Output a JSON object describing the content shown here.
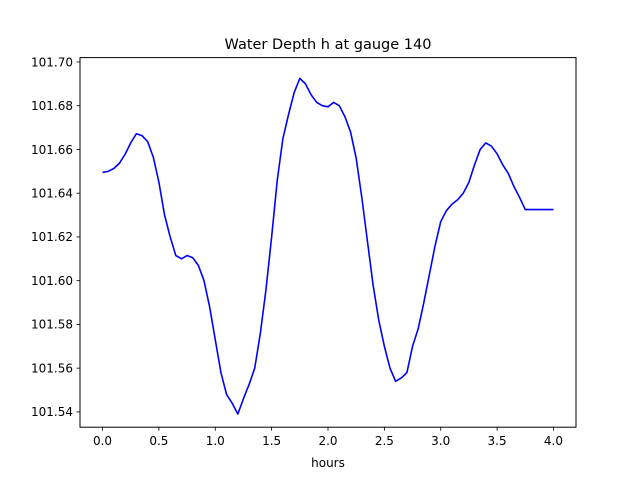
{
  "chart_data": {
    "type": "line",
    "title": "Water Depth h at gauge 140",
    "xlabel": "hours",
    "ylabel": "",
    "xlim": [
      -0.2,
      4.2
    ],
    "ylim": [
      101.533,
      101.702
    ],
    "x_ticks": [
      0.0,
      0.5,
      1.0,
      1.5,
      2.0,
      2.5,
      3.0,
      3.5,
      4.0
    ],
    "x_tick_labels": [
      "0.0",
      "0.5",
      "1.0",
      "1.5",
      "2.0",
      "2.5",
      "3.0",
      "3.5",
      "4.0"
    ],
    "y_ticks": [
      101.54,
      101.56,
      101.58,
      101.6,
      101.62,
      101.64,
      101.66,
      101.68,
      101.7
    ],
    "y_tick_labels": [
      "101.54",
      "101.56",
      "101.58",
      "101.60",
      "101.62",
      "101.64",
      "101.66",
      "101.68",
      "101.70"
    ],
    "grid": false,
    "legend": "none",
    "series": [
      {
        "color": "#0000ff",
        "x": [
          0.0,
          0.05,
          0.1,
          0.15,
          0.2,
          0.25,
          0.3,
          0.35,
          0.4,
          0.45,
          0.5,
          0.55,
          0.6,
          0.65,
          0.7,
          0.75,
          0.8,
          0.85,
          0.9,
          0.95,
          1.0,
          1.05,
          1.1,
          1.15,
          1.2,
          1.25,
          1.28,
          1.3,
          1.35,
          1.4,
          1.45,
          1.5,
          1.55,
          1.6,
          1.65,
          1.7,
          1.75,
          1.8,
          1.85,
          1.9,
          1.95,
          2.0,
          2.05,
          2.1,
          2.15,
          2.2,
          2.25,
          2.3,
          2.35,
          2.4,
          2.45,
          2.5,
          2.55,
          2.6,
          2.65,
          2.7,
          2.75,
          2.8,
          2.85,
          2.9,
          2.95,
          3.0,
          3.05,
          3.1,
          3.15,
          3.2,
          3.25,
          3.3,
          3.35,
          3.4,
          3.45,
          3.5,
          3.55,
          3.6,
          3.65,
          3.7,
          3.75,
          3.8,
          3.85,
          3.9,
          3.95,
          4.0
        ],
        "y": [
          101.6495,
          101.65,
          101.6513,
          101.6537,
          101.6578,
          101.663,
          101.6672,
          101.6663,
          101.6636,
          101.6565,
          101.645,
          101.63,
          101.62,
          101.6115,
          101.61,
          101.6115,
          101.6105,
          101.607,
          101.6,
          101.588,
          101.573,
          101.558,
          101.548,
          101.544,
          101.539,
          101.546,
          101.55,
          101.5525,
          101.56,
          101.576,
          101.596,
          101.62,
          101.646,
          101.665,
          101.676,
          101.686,
          101.6925,
          101.69,
          101.685,
          101.6815,
          101.68,
          101.6795,
          101.6815,
          101.68,
          101.675,
          101.668,
          101.656,
          101.638,
          101.618,
          101.598,
          101.582,
          101.57,
          101.56,
          101.554,
          101.5555,
          101.558,
          101.57,
          101.578,
          101.59,
          101.603,
          101.616,
          101.627,
          101.632,
          101.635,
          101.637,
          101.64,
          101.645,
          101.653,
          101.66,
          101.663,
          101.6615,
          101.658,
          101.653,
          101.649,
          101.643,
          101.638,
          101.6325,
          101.6325,
          101.6325,
          101.6325,
          101.6325,
          101.6325
        ]
      }
    ]
  }
}
